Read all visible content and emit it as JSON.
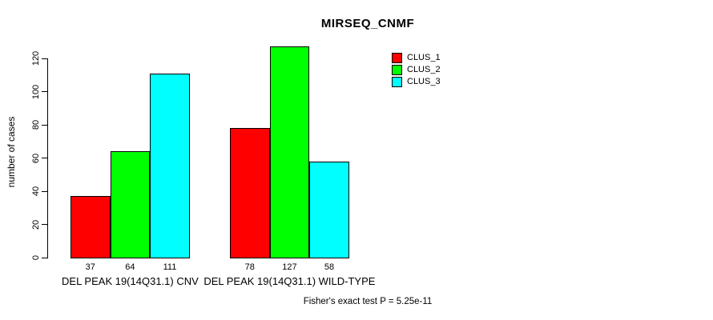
{
  "chart_data": {
    "type": "bar",
    "title": "MIRSEQ_CNMF",
    "ylabel": "number of cases",
    "xlabel": "",
    "categories": [
      "DEL PEAK 19(14Q31.1) CNV",
      "DEL PEAK 19(14Q31.1) WILD-TYPE"
    ],
    "series": [
      {
        "name": "CLUS_1",
        "color": "#FF0000",
        "values": [
          37,
          78
        ]
      },
      {
        "name": "CLUS_2",
        "color": "#00FF00",
        "values": [
          64,
          127
        ]
      },
      {
        "name": "CLUS_3",
        "color": "#00FFFF",
        "values": [
          111,
          58
        ]
      }
    ],
    "bar_value_labels": [
      [
        "37",
        "64",
        "111"
      ],
      [
        "78",
        "127",
        "58"
      ]
    ],
    "yticks": [
      0,
      20,
      40,
      60,
      80,
      100,
      120
    ],
    "ylim": [
      0,
      120
    ],
    "grid": false,
    "legend_position": "top-right",
    "bar_border_color": "#000000",
    "footnote": "Fisher's exact test P = 5.25e-11"
  }
}
